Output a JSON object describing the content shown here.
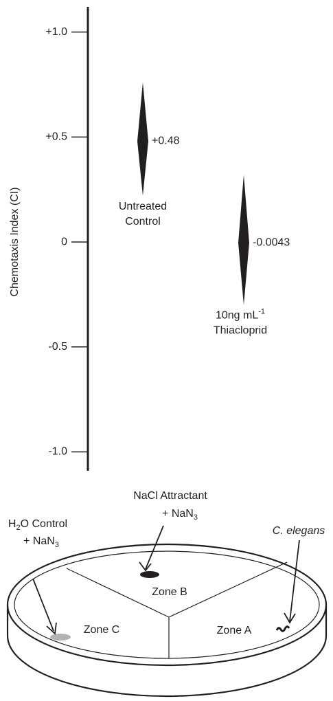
{
  "chart_data": {
    "type": "diamond",
    "y_label": "Chemotaxis Index (CI)",
    "ylim": [
      -1.09,
      1.12
    ],
    "yticks": [
      {
        "value": -1,
        "label": "-1.0"
      },
      -0.5,
      0,
      {
        "value": 0.5,
        "label": "+0.5"
      },
      {
        "value": 1,
        "label": "+1.0"
      }
    ],
    "categories": [
      {
        "lines": [
          "Untreated",
          "Control"
        ]
      },
      {
        "lines": [
          "10ng mL",
          "Thiacloprid"
        ],
        "sup": "-1"
      }
    ],
    "values": [
      0.48,
      -0.0043
    ],
    "value_labels": [
      "+0.48",
      "-0.0043"
    ],
    "low": [
      0.22,
      -0.3
    ],
    "high": [
      0.76,
      0.32
    ],
    "color": "#231f20"
  },
  "diagram": {
    "attractant": {
      "line1": "NaCl Attractant",
      "line2": "+ NaN",
      "sub": "3"
    },
    "control": {
      "line1": "H",
      "line1_sub": "2",
      "line1_rest": "O Control",
      "line2": "+ NaN",
      "sub": "3"
    },
    "organism": "C. elegans",
    "zones": [
      "Zone A",
      "Zone B",
      "Zone C"
    ]
  }
}
